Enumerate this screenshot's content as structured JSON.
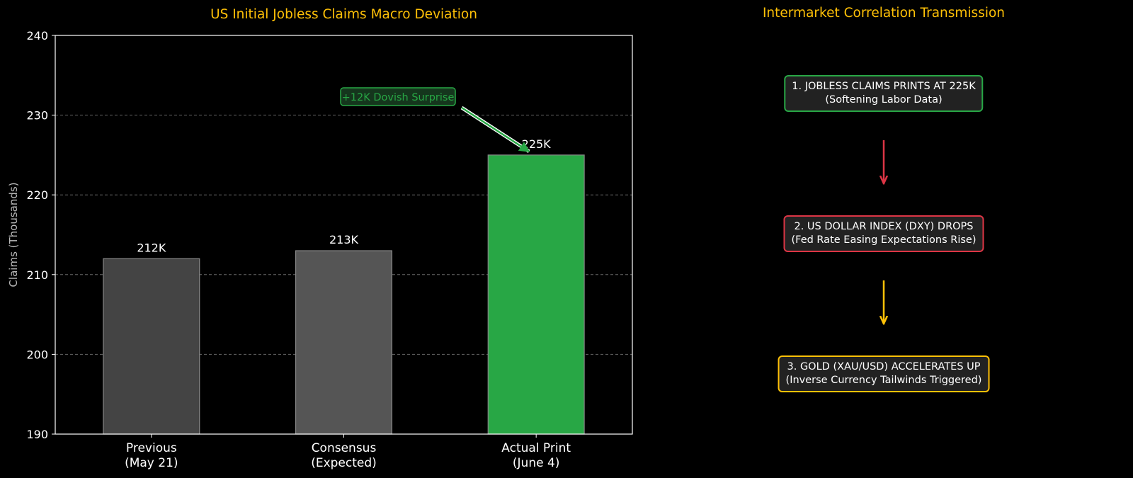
{
  "colors": {
    "background": "#000000",
    "title": "#ffc107",
    "green": "#28a745",
    "red": "#dc3545",
    "yellow": "#ffc107",
    "bar_gray_dark": "#444444",
    "bar_gray": "#555555",
    "box_fill": "#222222"
  },
  "chart_data": {
    "type": "bar",
    "title": "US Initial Jobless Claims Macro Deviation",
    "ylabel": "Claims (Thousands)",
    "xlabel": "",
    "ylim": [
      190,
      240
    ],
    "yticks": [
      190,
      200,
      210,
      220,
      230,
      240
    ],
    "grid": true,
    "categories": [
      "Previous\n(May 21)",
      "Consensus\n(Expected)",
      "Actual Print\n(June 4)"
    ],
    "values": [
      212,
      213,
      225
    ],
    "value_labels": [
      "212K",
      "213K",
      "225K"
    ],
    "bar_colors": [
      "#444444",
      "#555555",
      "#28a745"
    ],
    "annotation": {
      "text": "+12K Dovish Surprise",
      "target_category": "Actual Print\n(June 4)",
      "target_value": 225,
      "color": "#28a745"
    }
  },
  "flow": {
    "title": "Intermarket Correlation Transmission",
    "steps": [
      {
        "line1": "1. JOBLESS CLAIMS PRINTS AT 225K",
        "line2": "(Softening Labor Data)",
        "color": "#28a745"
      },
      {
        "line1": "2. US DOLLAR INDEX (DXY) DROPS",
        "line2": "(Fed Rate Easing Expectations Rise)",
        "color": "#dc3545"
      },
      {
        "line1": "3. GOLD (XAU/USD) ACCELERATES UP",
        "line2": "(Inverse Currency Tailwinds Triggered)",
        "color": "#ffc107"
      }
    ],
    "arrow_colors": [
      "#dc3545",
      "#ffc107"
    ]
  }
}
